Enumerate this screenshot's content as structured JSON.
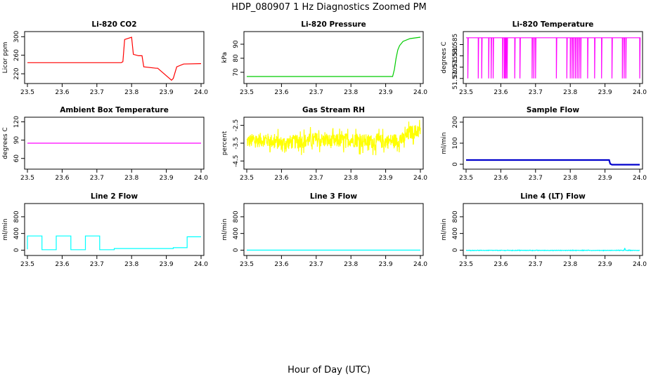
{
  "figure": {
    "title": "HDP_080907  1 Hz Diagnostics Zoomed PM",
    "xlabel": "Hour of Day (UTC)"
  },
  "chart_data": [
    {
      "type": "line",
      "title": "Li-820 CO2",
      "ylabel": "Licor ppm",
      "xlim": [
        23.5,
        24.0
      ],
      "xticks": [
        "23.5",
        "23.6",
        "23.7",
        "23.8",
        "23.9",
        "24.0"
      ],
      "ylim": [
        205,
        305
      ],
      "yticks": [
        "220",
        "260",
        "300"
      ],
      "color": "#ff0000",
      "series": [
        {
          "name": "CO2",
          "x": [
            23.5,
            23.77,
            23.775,
            23.78,
            23.8,
            23.805,
            23.82,
            23.83,
            23.835,
            23.87,
            23.875,
            23.915,
            23.92,
            23.93,
            23.95,
            24.0
          ],
          "y": [
            244,
            244,
            246,
            294,
            299,
            262,
            259,
            259,
            235,
            232,
            232,
            206,
            210,
            235,
            241,
            242
          ]
        }
      ]
    },
    {
      "type": "line",
      "title": "Li-820 Pressure",
      "ylabel": "kPa",
      "xlim": [
        23.5,
        24.0
      ],
      "xticks": [
        "23.5",
        "23.6",
        "23.7",
        "23.8",
        "23.9",
        "24.0"
      ],
      "ylim": [
        64,
        97
      ],
      "yticks": [
        "70",
        "80",
        "90"
      ],
      "color": "#00cc00",
      "series": [
        {
          "name": "Pressure",
          "x": [
            23.5,
            23.92,
            23.925,
            23.93,
            23.935,
            23.94,
            23.95,
            23.97,
            24.0
          ],
          "y": [
            67,
            67,
            72,
            80,
            86,
            89,
            92,
            94,
            95
          ]
        }
      ]
    },
    {
      "type": "line",
      "title": "Li-820 Temperature",
      "ylabel": "degrees C",
      "xlim": [
        23.5,
        24.0
      ],
      "xticks": [
        "23.5",
        "23.6",
        "23.7",
        "23.8",
        "23.9",
        "24.0"
      ],
      "ylim": [
        51.569,
        51.5895
      ],
      "yticks": [
        "51.570",
        "51.575",
        "51.580",
        "51.585"
      ],
      "color": "#ff00ff",
      "base_value": 51.588,
      "dip_value": 51.57,
      "dip_hours": [
        23.505,
        23.535,
        23.545,
        23.565,
        23.572,
        23.578,
        23.605,
        23.61,
        23.612,
        23.615,
        23.618,
        23.64,
        23.655,
        23.69,
        23.695,
        23.7,
        23.76,
        23.79,
        23.8,
        23.805,
        23.81,
        23.815,
        23.82,
        23.825,
        23.83,
        23.85,
        23.87,
        23.89,
        23.92,
        23.95,
        23.955,
        23.96,
        24.0
      ]
    },
    {
      "type": "line",
      "title": "Ambient Box Temperature",
      "ylabel": "degrees C",
      "xlim": [
        23.5,
        24.0
      ],
      "xticks": [
        "23.5",
        "23.6",
        "23.7",
        "23.8",
        "23.9",
        "24.0"
      ],
      "ylim": [
        47,
        123
      ],
      "yticks": [
        "60",
        "90",
        "120"
      ],
      "color": "#ff00ff",
      "series": [
        {
          "name": "AmbientBox",
          "x": [
            23.5,
            24.0
          ],
          "y": [
            85,
            85
          ]
        }
      ]
    },
    {
      "type": "line",
      "title": "Gas Stream RH",
      "ylabel": "percent",
      "xlim": [
        23.5,
        24.0
      ],
      "xticks": [
        "23.5",
        "23.6",
        "23.7",
        "23.8",
        "23.9",
        "24.0"
      ],
      "ylim": [
        -4.8,
        -2.2
      ],
      "yticks": [
        "-4.5",
        "-3.5",
        "-2.5"
      ],
      "color": "#ffff00",
      "series": [
        {
          "name": "RH",
          "x": [
            23.5,
            23.55,
            23.6,
            23.65,
            23.7,
            23.75,
            23.8,
            23.85,
            23.9,
            23.95,
            23.97,
            24.0
          ],
          "y": [
            -3.4,
            -3.3,
            -3.5,
            -3.4,
            -3.3,
            -3.4,
            -3.3,
            -3.4,
            -3.4,
            -3.3,
            -2.9,
            -2.8
          ]
        }
      ],
      "noise_amplitude": 0.5
    },
    {
      "type": "line",
      "title": "Sample Flow",
      "ylabel": "ml/min",
      "xlim": [
        23.5,
        24.0
      ],
      "xticks": [
        "23.5",
        "23.6",
        "23.7",
        "23.8",
        "23.9",
        "24.0"
      ],
      "ylim": [
        -10,
        210
      ],
      "yticks": [
        "0",
        "100",
        "200"
      ],
      "color": "#0000cc",
      "series": [
        {
          "name": "SampleFlow",
          "x": [
            23.5,
            23.912,
            23.915,
            23.92,
            24.0
          ],
          "y": [
            20,
            20,
            2,
            -2,
            -2
          ]
        }
      ]
    },
    {
      "type": "line",
      "title": "Line 2 Flow",
      "ylabel": "ml/min",
      "xlim": [
        23.5,
        24.0
      ],
      "xticks": [
        "23.5",
        "23.6",
        "23.7",
        "23.8",
        "23.9",
        "24.0"
      ],
      "ylim": [
        -60,
        1050
      ],
      "yticks": [
        "0",
        "400",
        "800"
      ],
      "color": "#00ffff",
      "series": [
        {
          "name": "Line2",
          "x": [
            23.5,
            23.5,
            23.542,
            23.542,
            23.583,
            23.583,
            23.625,
            23.625,
            23.667,
            23.667,
            23.708,
            23.708,
            23.75,
            23.75,
            23.92,
            23.92,
            23.96,
            23.96,
            24.0
          ],
          "y": [
            20,
            340,
            340,
            10,
            10,
            340,
            340,
            10,
            10,
            340,
            340,
            10,
            10,
            40,
            40,
            60,
            60,
            320,
            320
          ]
        }
      ]
    },
    {
      "type": "line",
      "title": "Line 3 Flow",
      "ylabel": "ml/min",
      "xlim": [
        23.5,
        24.0
      ],
      "xticks": [
        "23.5",
        "23.6",
        "23.7",
        "23.8",
        "23.9",
        "24.0"
      ],
      "ylim": [
        -60,
        1050
      ],
      "yticks": [
        "0",
        "400",
        "800"
      ],
      "color": "#00ffff",
      "series": [
        {
          "name": "Line3",
          "x": [
            23.5,
            24.0
          ],
          "y": [
            0,
            0
          ]
        }
      ]
    },
    {
      "type": "line",
      "title": "Line 4 (LT) Flow",
      "ylabel": "ml/min",
      "xlim": [
        23.5,
        24.0
      ],
      "xticks": [
        "23.5",
        "23.6",
        "23.7",
        "23.8",
        "23.9",
        "24.0"
      ],
      "ylim": [
        -60,
        1050
      ],
      "yticks": [
        "0",
        "400",
        "800"
      ],
      "color": "#00ffff",
      "series": [
        {
          "name": "Line4",
          "x": [
            23.5,
            23.955,
            23.957,
            23.959,
            24.0
          ],
          "y": [
            -5,
            -5,
            50,
            -5,
            -5
          ]
        }
      ],
      "noise_amplitude": 6
    }
  ]
}
